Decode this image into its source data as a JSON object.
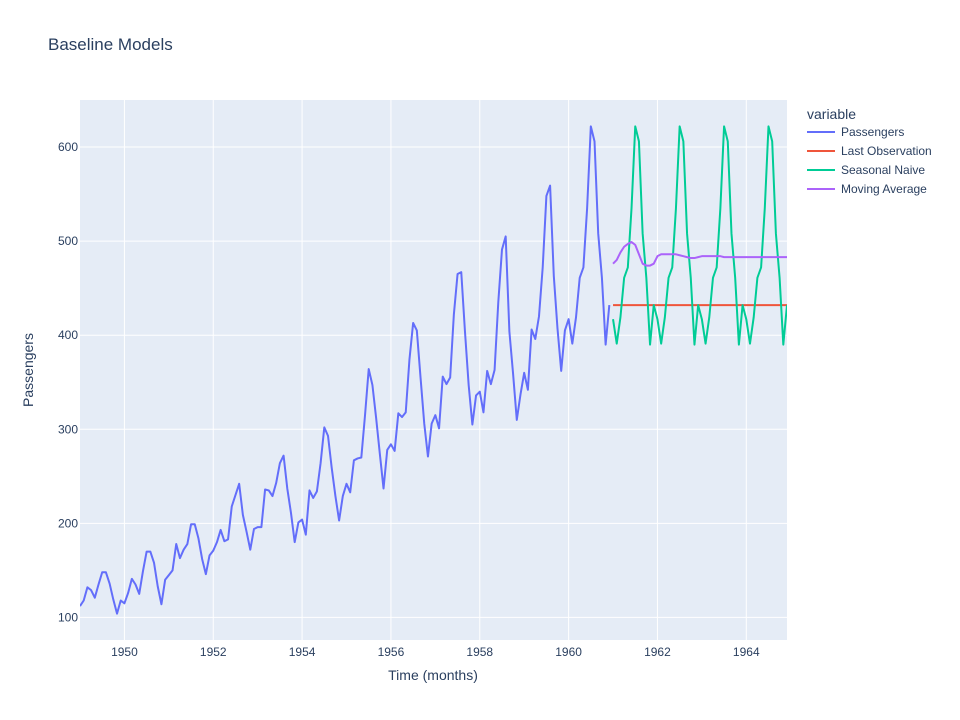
{
  "chart_data": {
    "type": "line",
    "title": "Baseline Models",
    "xlabel": "Time (months)",
    "ylabel": "Passengers",
    "xlim": [
      "1949-01",
      "1964-12"
    ],
    "ylim": [
      76,
      650
    ],
    "x_ticks": [
      "1950",
      "1952",
      "1954",
      "1956",
      "1958",
      "1960",
      "1962",
      "1964"
    ],
    "y_ticks": [
      100,
      200,
      300,
      400,
      500,
      600
    ],
    "legend_title": "variable",
    "legend_position": "right",
    "background": "#e5ecf6",
    "grid": true,
    "series": [
      {
        "name": "Passengers",
        "color": "#636efa",
        "x_start": "1949-01",
        "values": [
          112,
          118,
          132,
          129,
          121,
          135,
          148,
          148,
          136,
          119,
          104,
          118,
          115,
          126,
          141,
          135,
          125,
          149,
          170,
          170,
          158,
          133,
          114,
          140,
          145,
          150,
          178,
          163,
          172,
          178,
          199,
          199,
          184,
          162,
          146,
          166,
          171,
          180,
          193,
          181,
          183,
          218,
          230,
          242,
          209,
          191,
          172,
          194,
          196,
          196,
          236,
          235,
          229,
          243,
          264,
          272,
          237,
          211,
          180,
          201,
          204,
          188,
          235,
          227,
          234,
          264,
          302,
          293,
          259,
          229,
          203,
          229,
          242,
          233,
          267,
          269,
          270,
          315,
          364,
          347,
          312,
          274,
          237,
          278,
          284,
          277,
          317,
          313,
          318,
          374,
          413,
          405,
          355,
          306,
          271,
          306,
          315,
          301,
          356,
          348,
          355,
          422,
          465,
          467,
          404,
          347,
          305,
          336,
          340,
          318,
          362,
          348,
          363,
          435,
          491,
          505,
          404,
          359,
          310,
          337,
          360,
          342,
          406,
          396,
          420,
          472,
          548,
          559,
          463,
          407,
          362,
          405,
          417,
          391,
          419,
          461,
          472,
          535,
          622,
          606,
          508,
          461,
          390,
          432
        ]
      },
      {
        "name": "Last Observation",
        "color": "#ef553b",
        "x_start": "1961-01",
        "values": [
          432,
          432,
          432,
          432,
          432,
          432,
          432,
          432,
          432,
          432,
          432,
          432,
          432,
          432,
          432,
          432,
          432,
          432,
          432,
          432,
          432,
          432,
          432,
          432,
          432,
          432,
          432,
          432,
          432,
          432,
          432,
          432,
          432,
          432,
          432,
          432,
          432,
          432,
          432,
          432,
          432,
          432,
          432,
          432,
          432,
          432,
          432,
          432
        ]
      },
      {
        "name": "Seasonal Naive",
        "color": "#00cc96",
        "x_start": "1961-01",
        "values": [
          417,
          391,
          419,
          461,
          472,
          535,
          622,
          606,
          508,
          461,
          390,
          432,
          417,
          391,
          419,
          461,
          472,
          535,
          622,
          606,
          508,
          461,
          390,
          432,
          417,
          391,
          419,
          461,
          472,
          535,
          622,
          606,
          508,
          461,
          390,
          432,
          417,
          391,
          419,
          461,
          472,
          535,
          622,
          606,
          508,
          461,
          390,
          432
        ]
      },
      {
        "name": "Moving Average",
        "color": "#ab63fa",
        "x_start": "1961-01",
        "values": [
          476,
          480,
          488,
          494,
          497,
          499,
          496,
          486,
          476,
          474,
          474,
          476,
          484,
          486,
          486,
          486,
          486,
          486,
          485,
          484,
          483,
          482,
          482,
          483,
          484,
          484,
          484,
          484,
          484,
          484,
          483,
          483,
          483,
          483,
          483,
          483,
          483,
          483,
          483,
          483,
          483,
          483,
          483,
          483,
          483,
          483,
          483,
          483
        ]
      }
    ]
  }
}
